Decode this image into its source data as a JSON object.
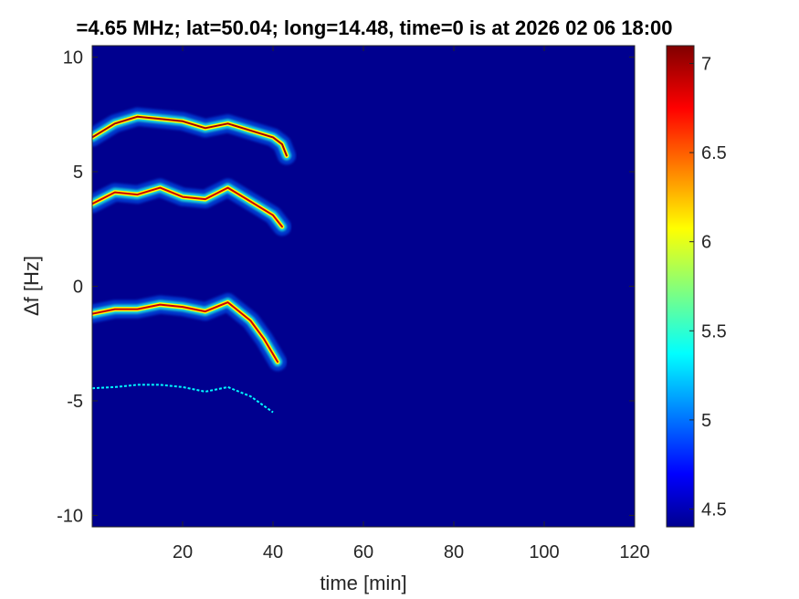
{
  "chart_data": {
    "type": "heatmap",
    "title": "=4.65 MHz;  lat=50.04; long=14.48, time=0 is at 2026 02 06 18:00",
    "xlabel": "time [min]",
    "ylabel": "Δf [Hz]",
    "xlim": [
      0,
      120
    ],
    "ylim": [
      -10.5,
      10.5
    ],
    "x_ticks": [
      20,
      40,
      60,
      80,
      100,
      120
    ],
    "y_ticks": [
      10,
      5,
      0,
      -5,
      -10
    ],
    "x_tick_labels": [
      "20",
      "40",
      "60",
      "80",
      "100",
      "120"
    ],
    "y_tick_labels": [
      "10",
      "5",
      "0",
      "-5",
      "-10"
    ],
    "colorbar": {
      "range": [
        4.4,
        7.1
      ],
      "ticks": [
        4.5,
        5,
        5.5,
        6,
        6.5,
        7
      ],
      "tick_labels": [
        "4.5",
        "5",
        "5.5",
        "6",
        "6.5",
        "7"
      ],
      "colormap": "jet"
    },
    "background_value": 4.45,
    "series": [
      {
        "x": [
          0,
          5,
          10,
          15,
          20,
          25,
          30,
          35,
          40,
          42,
          43
        ],
        "y": [
          6.5,
          7.1,
          7.4,
          7.3,
          7.2,
          6.9,
          7.1,
          6.8,
          6.5,
          6.2,
          5.7
        ],
        "peak": 7.0
      },
      {
        "x": [
          0,
          5,
          10,
          15,
          20,
          25,
          30,
          35,
          40,
          42
        ],
        "y": [
          3.6,
          4.1,
          4.0,
          4.3,
          3.9,
          3.8,
          4.3,
          3.7,
          3.1,
          2.6
        ],
        "peak": 6.9
      },
      {
        "x": [
          0,
          5,
          10,
          15,
          20,
          25,
          30,
          35,
          38,
          41
        ],
        "y": [
          -1.2,
          -1.0,
          -1.0,
          -0.8,
          -0.9,
          -1.1,
          -0.7,
          -1.5,
          -2.3,
          -3.3
        ],
        "peak": 6.9
      },
      {
        "x": [
          0,
          5,
          10,
          15,
          20,
          25,
          30,
          35,
          40
        ],
        "y": [
          -4.45,
          -4.4,
          -4.3,
          -4.3,
          -4.4,
          -4.6,
          -4.4,
          -4.8,
          -5.5
        ],
        "peak": 5.4
      }
    ]
  }
}
